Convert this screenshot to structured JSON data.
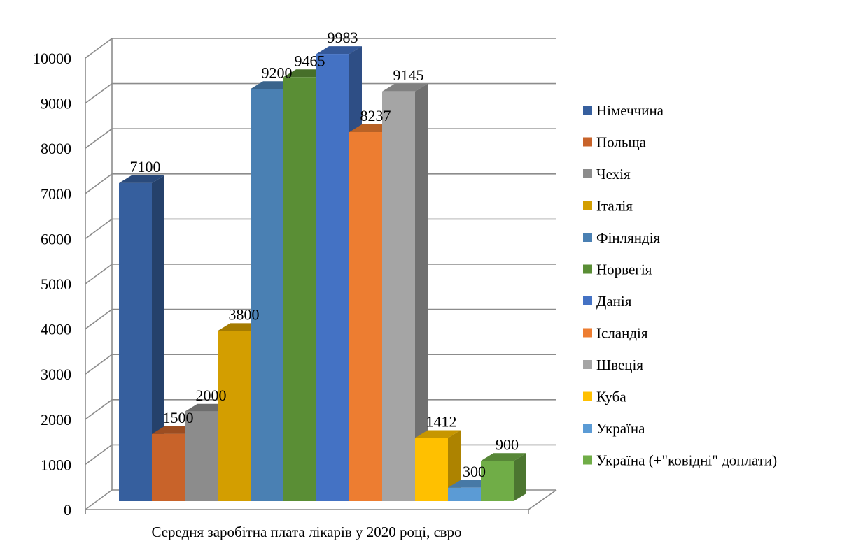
{
  "chart_data": {
    "type": "bar",
    "title": "",
    "xlabel": "Середня заробітна плата лікарів у 2020 році, євро",
    "ylabel": "",
    "ylim": [
      0,
      10000
    ],
    "yticks": [
      0,
      1000,
      2000,
      3000,
      4000,
      5000,
      6000,
      7000,
      8000,
      9000,
      10000
    ],
    "grid": true,
    "legend_position": "right",
    "categories": [
      "Середня заробітна плата лікарів у 2020 році, євро"
    ],
    "series": [
      {
        "name": "Німеччина",
        "values": [
          7100
        ],
        "label": "7100",
        "color": "#365f9e"
      },
      {
        "name": "Польща",
        "values": [
          1500
        ],
        "label": "1500",
        "color": "#c8632a"
      },
      {
        "name": "Чехія",
        "values": [
          2000
        ],
        "label": "2000",
        "color": "#8c8c8c"
      },
      {
        "name": "Італія",
        "values": [
          3800
        ],
        "label": "3800",
        "color": "#d39e00"
      },
      {
        "name": "Фінляндія",
        "values": [
          9200
        ],
        "label": "9200",
        "color": "#4a80b3"
      },
      {
        "name": "Норвегія",
        "values": [
          9465
        ],
        "label": "9465",
        "color": "#5a8e35"
      },
      {
        "name": "Данія",
        "values": [
          9983
        ],
        "label": "9983",
        "color": "#4472c4"
      },
      {
        "name": "Ісландія",
        "values": [
          8237
        ],
        "label": "8237",
        "color": "#ed7d31"
      },
      {
        "name": "Швеція",
        "values": [
          9145
        ],
        "label": "9145",
        "color": "#a5a5a5"
      },
      {
        "name": "Куба",
        "values": [
          1412
        ],
        "label": "1412",
        "color": "#ffc000"
      },
      {
        "name": "Україна",
        "values": [
          300
        ],
        "label": "300",
        "color": "#5b9bd5"
      },
      {
        "name": "Україна (+\"ковідні\" доплати)",
        "values": [
          900
        ],
        "label": "900",
        "color": "#70ad47"
      }
    ]
  }
}
